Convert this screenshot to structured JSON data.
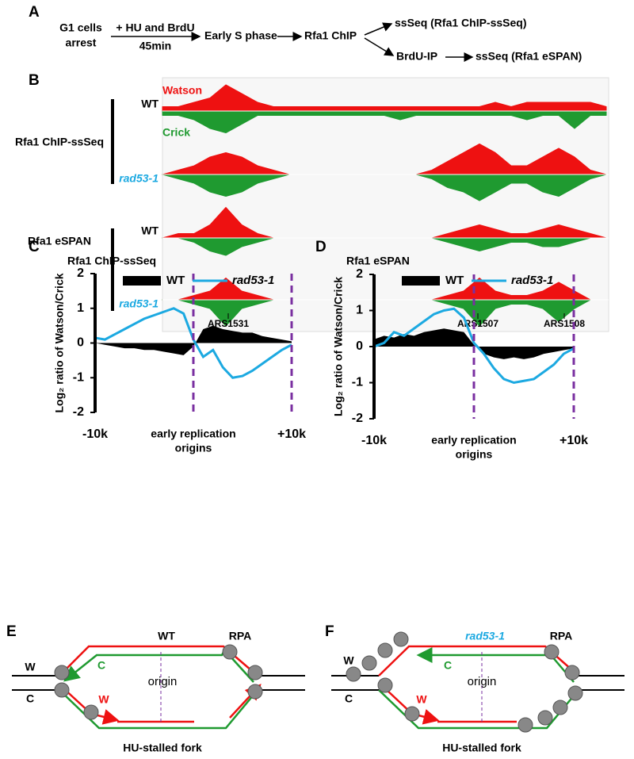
{
  "panel_a": {
    "letter": "A",
    "g1": [
      "G1 cells",
      "arrest"
    ],
    "treat": "+ HU and BrdU",
    "time": "45min",
    "early": "Early S phase",
    "chip": "Rfa1 ChIP",
    "ssseq1": "ssSeq (Rfa1 ChIP-ssSeq)",
    "brdu": "BrdU-IP",
    "ssseq2": "ssSeq (Rfa1 eSPAN)"
  },
  "panel_b": {
    "letter": "B",
    "watson": "Watson",
    "crick": "Crick",
    "watson_color": "#ee1111",
    "crick_color": "#1f9a30",
    "groups": [
      "Rfa1 ChIP-ssSeq",
      "Rfa1 eSPAN"
    ],
    "rows": [
      {
        "label": "WT",
        "watson": [
          1,
          1,
          2,
          3,
          6,
          4,
          2,
          1,
          1,
          1,
          1,
          1,
          1,
          1,
          1,
          1,
          1,
          1,
          1,
          1,
          1,
          2,
          1,
          2,
          2,
          2,
          2,
          2,
          1
        ],
        "crick": [
          1,
          1,
          2,
          4,
          5,
          3,
          1,
          1,
          1,
          1,
          1,
          1,
          1,
          1,
          1,
          2,
          1,
          1,
          1,
          1,
          1,
          1,
          1,
          2,
          1,
          1,
          4,
          1,
          1
        ]
      },
      {
        "label": "rad53-1",
        "watson": [
          0,
          1,
          2,
          4,
          5,
          4,
          2,
          1,
          0,
          0,
          0,
          0,
          0,
          0,
          0,
          0,
          0,
          1,
          3,
          5,
          7,
          5,
          2,
          2,
          4,
          6,
          4,
          1,
          0
        ],
        "crick": [
          0,
          1,
          2,
          4,
          5,
          4,
          2,
          1,
          0,
          0,
          0,
          0,
          0,
          0,
          0,
          0,
          0,
          1,
          3,
          4,
          6,
          4,
          2,
          2,
          4,
          5,
          3,
          1,
          0
        ]
      },
      {
        "label": "WT",
        "watson": [
          0,
          1,
          1,
          3,
          7,
          3,
          1,
          0,
          0,
          0,
          0,
          0,
          0,
          0,
          0,
          0,
          0,
          0,
          1,
          2,
          3,
          2,
          1,
          1,
          2,
          3,
          2,
          1,
          0
        ],
        "crick": [
          0,
          0,
          1,
          3,
          4,
          2,
          1,
          0,
          0,
          0,
          0,
          0,
          0,
          0,
          0,
          0,
          0,
          0,
          1,
          2,
          3,
          2,
          1,
          1,
          2,
          2,
          1,
          0,
          0
        ]
      },
      {
        "label": "rad53-1",
        "watson": [
          0,
          0,
          1,
          2,
          5,
          2,
          1,
          0,
          0,
          0,
          0,
          0,
          0,
          0,
          0,
          0,
          0,
          0,
          1,
          2,
          5,
          2,
          1,
          1,
          2,
          4,
          2,
          0,
          0
        ],
        "crick": [
          0,
          0,
          1,
          2,
          6,
          2,
          1,
          0,
          0,
          0,
          0,
          0,
          0,
          0,
          0,
          0,
          0,
          0,
          1,
          2,
          6,
          2,
          1,
          1,
          2,
          5,
          2,
          0,
          0
        ]
      }
    ],
    "ars": [
      "ARS1531",
      "ARS1507",
      "ARS1508"
    ]
  },
  "chart_data": [
    {
      "type": "line",
      "letter": "C",
      "title": "Rfa1 ChIP-ssSeq",
      "ylabel": "Log₂ ratio of Watson/Crick",
      "xlabel": [
        "early replication",
        "origins"
      ],
      "x": [
        -10000,
        -9000,
        -8000,
        -7000,
        -6000,
        -5000,
        -4000,
        -3000,
        -2000,
        -1000,
        0,
        1000,
        2000,
        3000,
        4000,
        5000,
        6000,
        7000,
        8000,
        9000,
        10000
      ],
      "xlim": [
        -10000,
        10000
      ],
      "xticks": [
        {
          "value": -10000,
          "label": "-10k"
        },
        {
          "value": 10000,
          "label": "+10k"
        }
      ],
      "ylim": [
        -2,
        2
      ],
      "yticks": [
        -2,
        -1,
        0,
        1,
        2
      ],
      "vlines": [
        0,
        10000
      ],
      "vline_color": "#7a2fa0",
      "series": [
        {
          "name": "WT",
          "color": "#000000",
          "style": "area",
          "values": [
            0,
            -0.05,
            -0.1,
            -0.15,
            -0.15,
            -0.2,
            -0.2,
            -0.25,
            -0.3,
            -0.35,
            -0.1,
            0.4,
            0.5,
            0.4,
            0.35,
            0.3,
            0.3,
            0.2,
            0.15,
            0.1,
            0.05
          ]
        },
        {
          "name": "rad53-1",
          "color": "#1ca9e1",
          "style": "line",
          "values": [
            0.15,
            0.1,
            0.25,
            0.4,
            0.55,
            0.7,
            0.8,
            0.9,
            1.0,
            0.85,
            0.1,
            -0.4,
            -0.2,
            -0.7,
            -1.0,
            -0.95,
            -0.8,
            -0.6,
            -0.4,
            -0.2,
            -0.05
          ]
        }
      ]
    },
    {
      "type": "line",
      "letter": "D",
      "title": "Rfa1 eSPAN",
      "ylabel": "Log₂ ratio of Watson/Crick",
      "xlabel": [
        "early replication",
        "origins"
      ],
      "x": [
        -10000,
        -9000,
        -8000,
        -7000,
        -6000,
        -5000,
        -4000,
        -3000,
        -2000,
        -1000,
        0,
        1000,
        2000,
        3000,
        4000,
        5000,
        6000,
        7000,
        8000,
        9000,
        10000
      ],
      "xlim": [
        -10000,
        10000
      ],
      "xticks": [
        {
          "value": -10000,
          "label": "-10k"
        },
        {
          "value": 10000,
          "label": "+10k"
        }
      ],
      "ylim": [
        -2,
        2
      ],
      "yticks": [
        -2,
        -1,
        0,
        1,
        2
      ],
      "vlines": [
        0,
        10000
      ],
      "vline_color": "#7a2fa0",
      "series": [
        {
          "name": "WT",
          "color": "#000000",
          "style": "area",
          "values": [
            0.2,
            0.3,
            0.25,
            0.35,
            0.3,
            0.4,
            0.45,
            0.5,
            0.45,
            0.4,
            0.05,
            -0.2,
            -0.3,
            -0.35,
            -0.3,
            -0.35,
            -0.3,
            -0.2,
            -0.15,
            -0.1,
            -0.05
          ]
        },
        {
          "name": "rad53-1",
          "color": "#1ca9e1",
          "style": "line",
          "values": [
            0,
            0.1,
            0.4,
            0.3,
            0.5,
            0.7,
            0.9,
            1.0,
            1.05,
            0.8,
            0.1,
            -0.2,
            -0.6,
            -0.9,
            -1.0,
            -0.95,
            -0.9,
            -0.7,
            -0.5,
            -0.2,
            -0.05
          ]
        }
      ]
    }
  ],
  "panel_e": {
    "letter": "E",
    "title": "WT",
    "rpa": "RPA",
    "w": "W",
    "c": "C",
    "c_new": "C",
    "w_new": "W",
    "origin": "origin",
    "fork": "HU-stalled fork"
  },
  "panel_f": {
    "letter": "F",
    "title": "rad53-1",
    "rpa": "RPA",
    "w": "W",
    "c": "C",
    "c_new": "C",
    "w_new": "W",
    "origin": "origin",
    "fork": "HU-stalled fork"
  }
}
